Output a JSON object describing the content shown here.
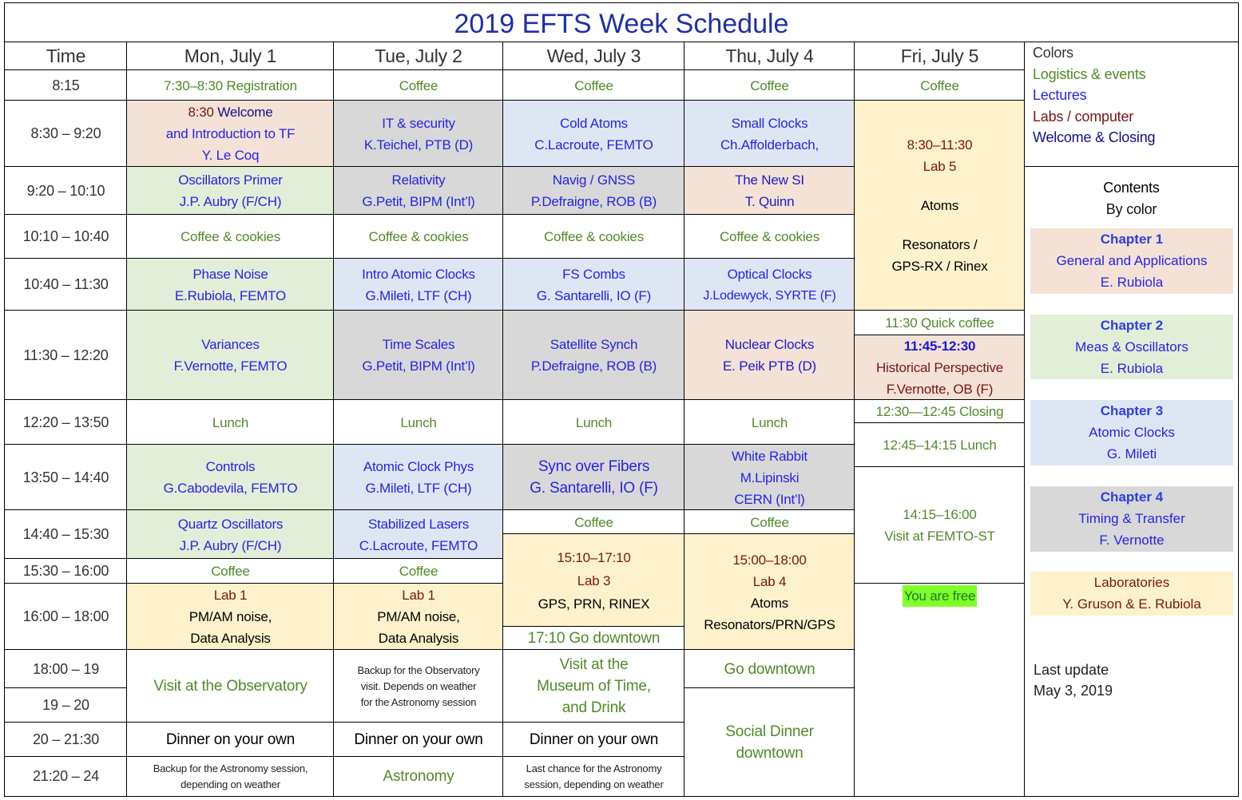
{
  "title": "2019 EFTS Week Schedule",
  "header": {
    "time": "Time",
    "days": [
      "Mon, July 1",
      "Tue, July 2",
      "Wed, July 3",
      "Thu, July 4",
      "Fri, July 5"
    ]
  },
  "times": [
    "8:15",
    "8:30 – 9:20",
    "9:20 – 10:10",
    "10:10 – 10:40",
    "10:40 – 11:30",
    "11:30 – 12:20",
    "12:20 – 13:50",
    "13:50 – 14:40",
    "14:40 – 15:30",
    "15:30 – 16:00",
    "16:00 – 18:00",
    "18:00 – 19",
    "19 – 20",
    "20 – 21:30",
    "21:20 – 24"
  ],
  "mon": [
    [
      "7:30–8:30 Registration"
    ],
    [
      "8:30",
      " Welcome",
      "and Introduction to TF",
      "Y. Le Coq"
    ],
    [
      "Oscillators Primer",
      "J.P. Aubry (F/CH)"
    ],
    [
      "Coffee & cookies"
    ],
    [
      "Phase Noise",
      "E.Rubiola, FEMTO"
    ],
    [
      "Variances",
      "F.Vernotte, FEMTO"
    ],
    [
      "Lunch"
    ],
    [
      "Controls",
      "G.Cabodevila, FEMTO"
    ],
    [
      "Quartz Oscillators",
      "J.P. Aubry (F/CH)"
    ],
    [
      "Coffee"
    ],
    [
      "Lab 1",
      "PM/AM noise,",
      "Data Analysis"
    ],
    [
      "Visit at the Observatory"
    ],
    [
      "Dinner on your own"
    ],
    [
      "Backup for the Astronomy session,",
      "depending on weather"
    ]
  ],
  "tue": [
    [
      "Coffee"
    ],
    [
      "IT & security",
      "K.Teichel, PTB (D)"
    ],
    [
      "Relativity",
      "G.Petit, BIPM (Int’l)"
    ],
    [
      "Coffee & cookies"
    ],
    [
      "Intro Atomic Clocks",
      "G.Mileti, LTF (CH)"
    ],
    [
      "Time Scales",
      "G.Petit, BIPM (Int’l)"
    ],
    [
      "Lunch"
    ],
    [
      "Atomic Clock Phys",
      "G.Mileti, LTF (CH)"
    ],
    [
      "Stabilized Lasers",
      "C.Lacroute, FEMTO"
    ],
    [
      "Coffee"
    ],
    [
      "Lab 1",
      "PM/AM noise,",
      "Data Analysis"
    ],
    [
      "Backup for the Observatory",
      "visit.  Depends on weather",
      "for the Astronomy session"
    ],
    [
      "Dinner on your own"
    ],
    [
      "Astronomy"
    ]
  ],
  "wed": [
    [
      "Coffee"
    ],
    [
      "Cold Atoms",
      "C.Lacroute, FEMTO"
    ],
    [
      "Navig / GNSS",
      "P.Defraigne, ROB (B)"
    ],
    [
      "Coffee & cookies"
    ],
    [
      "FS Combs",
      "G. Santarelli, IO (F)"
    ],
    [
      "Satellite Synch",
      "P.Defraigne, ROB (B)"
    ],
    [
      "Lunch"
    ],
    [
      "Sync over Fibers",
      "G. Santarelli, IO (F)"
    ],
    [
      "Coffee"
    ],
    [
      "15:10–17:10",
      "Lab 3",
      "GPS, PRN, RINEX"
    ],
    [
      "17:10 Go downtown"
    ],
    [
      "Visit at the",
      "Museum of Time,",
      "and Drink"
    ],
    [
      "Dinner on your own"
    ],
    [
      "Last chance for the Astronomy",
      "session, depending on weather"
    ]
  ],
  "thu": [
    [
      "Coffee"
    ],
    [
      "Small Clocks",
      "Ch.Affolderbach,"
    ],
    [
      "The New SI",
      "T. Quinn"
    ],
    [
      "Coffee & cookies"
    ],
    [
      "Optical Clocks",
      "J.Lodewyck, SYRTE (F)"
    ],
    [
      "Nuclear Clocks",
      "E. Peik  PTB (D)"
    ],
    [
      "Lunch"
    ],
    [
      "White Rabbit",
      "M.Lipinski",
      "CERN (Int’l)"
    ],
    [
      "Coffee"
    ],
    [
      "15:00–18:00",
      "Lab 4",
      "Atoms",
      "Resonators/PRN/GPS"
    ],
    [
      "Go downtown"
    ],
    [
      "Social Dinner",
      "downtown"
    ]
  ],
  "fri": [
    [
      "Coffee"
    ],
    [
      "8:30–11:30",
      "Lab 5",
      "Atoms",
      "Resonators /",
      "GPS-RX / Rinex"
    ],
    [
      "11:30 Quick coffee"
    ],
    [
      "11:45-12:30",
      "Historical Perspective",
      "F.Vernotte, OB (F)"
    ],
    [
      "12:30—12:45 Closing"
    ],
    [
      "12:45–14:15 Lunch"
    ],
    [
      "14:15–16:00",
      "Visit at FEMTO-ST"
    ],
    [
      "You are free"
    ]
  ],
  "legend": {
    "heading": "Colors",
    "items": [
      "Logistics & events",
      "Lectures",
      "Labs / computer",
      "Welcome & Closing"
    ],
    "colors": {
      "logistics": "#4f8a28",
      "lectures": "#2424e6",
      "labs": "#7b1414",
      "welcome": "#10108a"
    }
  },
  "contents": {
    "heading": "Contents",
    "subheading": "By color",
    "chapters": [
      [
        "Chapter 1",
        "General and Applications",
        "E. Rubiola"
      ],
      [
        "Chapter 2",
        "Meas & Oscillators",
        "E. Rubiola"
      ],
      [
        "Chapter 3",
        "Atomic Clocks",
        "G. Mileti"
      ],
      [
        "Chapter 4",
        "Timing & Transfer",
        "F. Vernotte"
      ],
      [
        "Laboratories",
        "Y. Gruson & E. Rubiola"
      ]
    ]
  },
  "update": {
    "label": "Last update",
    "date": "May 3, 2019"
  }
}
